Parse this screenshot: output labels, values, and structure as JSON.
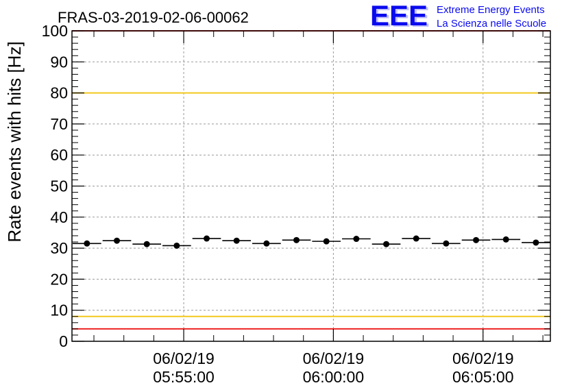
{
  "title": "FRAS-03-2019-02-06-00062",
  "logo": {
    "text": "EEE",
    "line1": "Extreme Energy Events",
    "line2": "La Scienza nelle Scuole",
    "color": "#0a0aee"
  },
  "chart_data": {
    "type": "scatter",
    "ylabel": "Rate events with hits [Hz]",
    "xlabel": "",
    "ylim": [
      0,
      100
    ],
    "xlim": [
      "05:51:16",
      "06:07:15"
    ],
    "y_ticks": [
      "0",
      "10",
      "20",
      "30",
      "40",
      "50",
      "60",
      "70",
      "80",
      "90",
      "100"
    ],
    "x_ticks": [
      {
        "time": "05:55:00",
        "date_label": "06/02/19",
        "time_label": "05:55:00"
      },
      {
        "time": "06:00:00",
        "date_label": "06/02/19",
        "time_label": "06:00:00"
      },
      {
        "time": "06:05:00",
        "date_label": "06/02/19",
        "time_label": "06:05:00"
      }
    ],
    "grid": true,
    "points": [
      {
        "x": "05:51:46",
        "y": 31.5
      },
      {
        "x": "05:52:46",
        "y": 32.4
      },
      {
        "x": "05:53:46",
        "y": 31.3
      },
      {
        "x": "05:54:46",
        "y": 30.8
      },
      {
        "x": "05:55:46",
        "y": 33.1
      },
      {
        "x": "05:56:46",
        "y": 32.4
      },
      {
        "x": "05:57:46",
        "y": 31.5
      },
      {
        "x": "05:58:46",
        "y": 32.6
      },
      {
        "x": "05:59:46",
        "y": 32.2
      },
      {
        "x": "06:00:46",
        "y": 33.0
      },
      {
        "x": "06:01:46",
        "y": 31.3
      },
      {
        "x": "06:02:46",
        "y": 33.1
      },
      {
        "x": "06:03:46",
        "y": 31.5
      },
      {
        "x": "06:04:46",
        "y": 32.6
      },
      {
        "x": "06:05:46",
        "y": 32.8
      },
      {
        "x": "06:06:46",
        "y": 31.8
      }
    ],
    "bin_width_seconds": 60,
    "threshold_lines": [
      {
        "y": 100,
        "color": "#ee2222"
      },
      {
        "y": 80,
        "color": "#f2c81e"
      },
      {
        "y": 8,
        "color": "#f2c81e"
      },
      {
        "y": 4,
        "color": "#ee2222"
      }
    ],
    "marker_color": "#000000"
  }
}
